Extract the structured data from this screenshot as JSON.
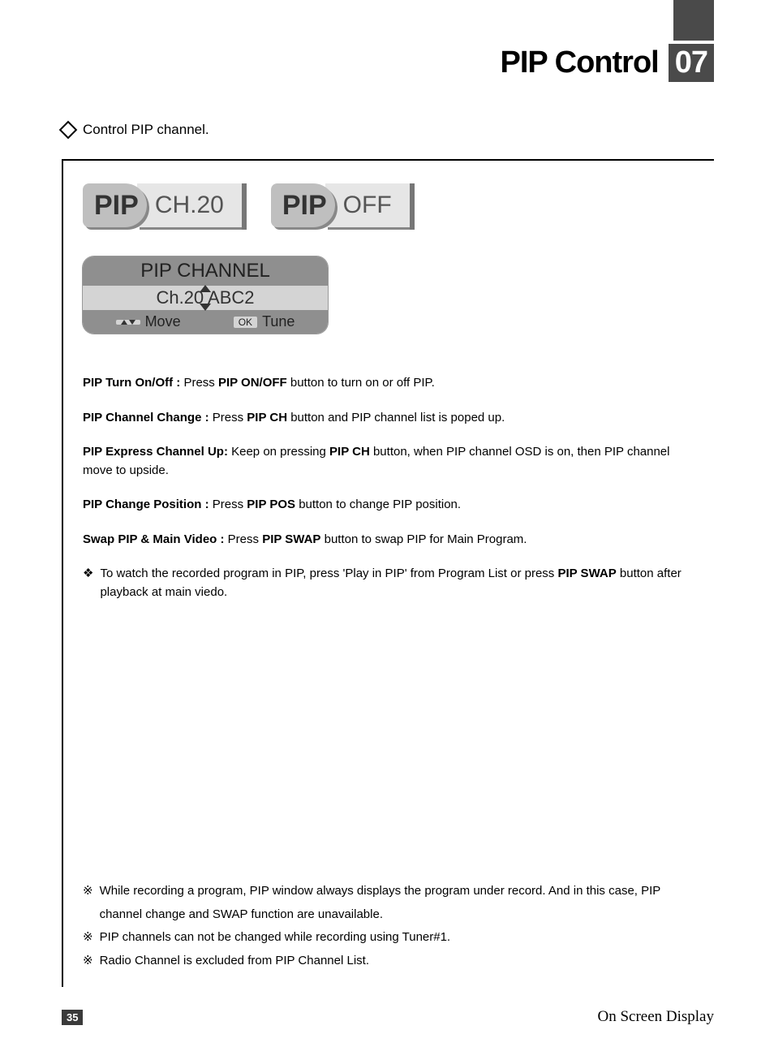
{
  "header": {
    "title": "PIP Control",
    "section_number": "07"
  },
  "intro": "Control PIP channel.",
  "osd_indicators": [
    {
      "label": "PIP",
      "value": "CH.20"
    },
    {
      "label": "PIP",
      "value": "OFF"
    }
  ],
  "channel_menu": {
    "title": "PIP CHANNEL",
    "value": "Ch.20 ABC2",
    "footer": {
      "move_key_icon": "▲▼",
      "move_label": "Move",
      "ok_key": "OK",
      "tune_label": "Tune"
    }
  },
  "instructions": [
    {
      "label": "PIP Turn On/Off :",
      "pre": " Press ",
      "button": "PIP ON/OFF",
      "post": " button to turn on or off PIP."
    },
    {
      "label": "PIP Channel Change :",
      "pre": " Press ",
      "button": "PIP CH",
      "post": " button and PIP channel list is poped up."
    },
    {
      "label": "PIP Express Channel Up:",
      "pre": " Keep on pressing ",
      "button": "PIP CH",
      "post": " button, when PIP channel OSD is on, then PIP channel move to upside."
    },
    {
      "label": "PIP Change Position :",
      "pre": " Press ",
      "button": "PIP POS",
      "post": " button to change PIP position."
    },
    {
      "label": "Swap PIP & Main Video :",
      "pre": " Press ",
      "button": "PIP SWAP",
      "post": " button to swap PIP for Main Program."
    }
  ],
  "note": {
    "pre": "To watch the recorded program in PIP, press 'Play in PIP' from Program List or press ",
    "button": "PIP SWAP",
    "post": " button after playback at main viedo."
  },
  "footnotes": [
    "While recording a program, PIP window always displays the program under record. And in this case, PIP channel change and SWAP function are unavailable.",
    "PIP channels can not be changed while recording using Tuner#1.",
    "Radio Channel is excluded from PIP Channel List."
  ],
  "footer": {
    "page_number": "35",
    "section": "On Screen Display"
  },
  "colors": {
    "tab_bg": "#4a4a4a",
    "osd_dark": "#bfbfbf",
    "osd_light": "#e6e6e6",
    "menu_header": "#8f8f8f",
    "menu_body": "#d4d4d4"
  }
}
